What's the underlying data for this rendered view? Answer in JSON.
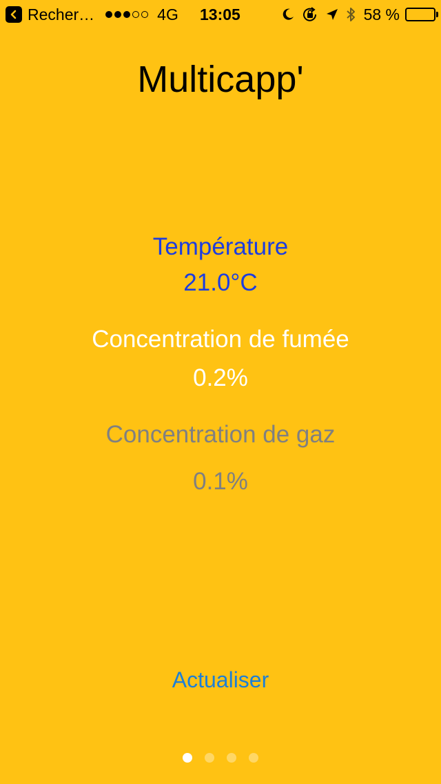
{
  "status_bar": {
    "back_app": "Recher…",
    "signal_total": 5,
    "signal_filled": 3,
    "network": "4G",
    "time": "13:05",
    "battery_percent_label": "58 %",
    "battery_level": 0.58,
    "icons": [
      "back-arrow-icon",
      "moon-icon",
      "orientation-lock-icon",
      "location-arrow-icon",
      "bluetooth-icon",
      "battery-icon"
    ]
  },
  "app": {
    "title": "Multicapp'"
  },
  "readings": {
    "temperature": {
      "label": "Température",
      "value": "21.0°C",
      "color": "#1C3DE0"
    },
    "smoke": {
      "label": "Concentration de fumée",
      "value": "0.2%",
      "color": "#FFFFFF"
    },
    "gas": {
      "label": "Concentration de gaz",
      "value": "0.1%",
      "color": "#808080"
    }
  },
  "actions": {
    "refresh_label": "Actualiser"
  },
  "pager": {
    "total": 4,
    "current": 1
  },
  "theme": {
    "background": "#FFC213",
    "accent": "#1D7FD6"
  }
}
